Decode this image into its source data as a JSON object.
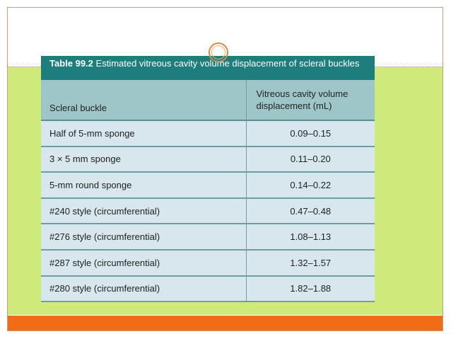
{
  "table": {
    "caption_label": "Table 99.2",
    "caption_text": " Estimated vitreous cavity volume displacement of scleral buckles",
    "headers": {
      "col1": "Scleral buckle",
      "col2": "Vitreous cavity volume displacement (mL)"
    },
    "rows": [
      {
        "buckle": "Half of 5-mm sponge",
        "volume": "0.09–0.15"
      },
      {
        "buckle": "3 × 5 mm sponge",
        "volume": "0.11–0.20"
      },
      {
        "buckle": "5-mm round sponge",
        "volume": "0.14–0.22"
      },
      {
        "buckle": "#240 style (circumferential)",
        "volume": "0.47–0.48"
      },
      {
        "buckle": "#276 style (circumferential)",
        "volume": "1.08–1.13"
      },
      {
        "buckle": "#287 style (circumferential)",
        "volume": "1.32–1.57"
      },
      {
        "buckle": "#280 style (circumferential)",
        "volume": "1.82–1.88"
      }
    ]
  },
  "theme": {
    "green": "#cdea7a",
    "orange": "#f26b16",
    "teal": "#1d7e7d",
    "header_bg": "#9ec6c8",
    "cell_bg": "#d7e7ed"
  }
}
